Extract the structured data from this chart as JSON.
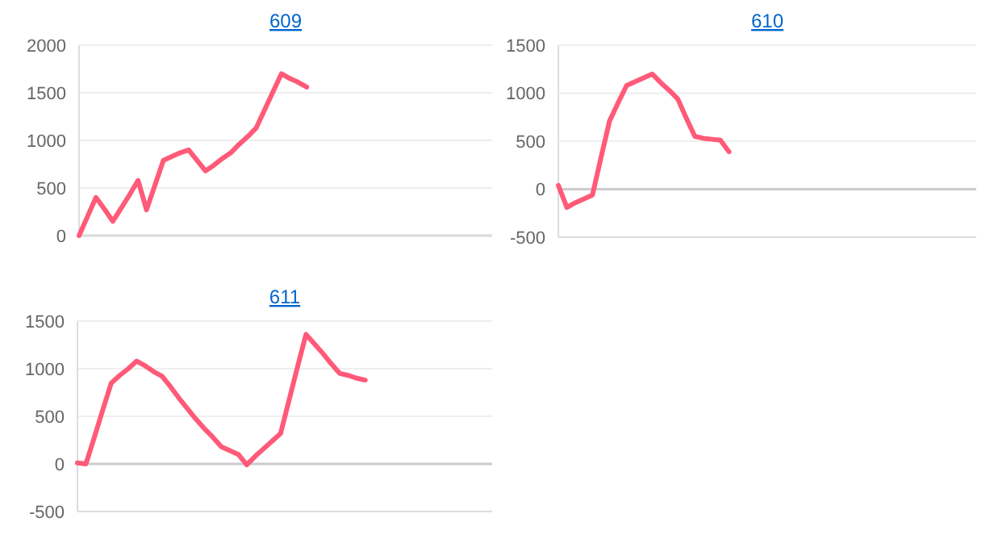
{
  "chart_data": [
    {
      "type": "line",
      "title": "609",
      "categories": [
        null,
        null,
        null,
        null,
        null,
        null,
        null,
        null,
        null,
        null,
        null,
        null,
        null,
        null,
        null,
        null,
        null,
        null,
        null,
        null,
        null,
        null,
        null,
        null,
        null,
        null,
        null,
        null,
        null,
        null,
        null,
        null,
        null,
        null,
        null,
        null,
        null,
        null,
        null,
        null,
        null,
        null,
        null,
        null,
        null,
        null,
        null,
        null,
        null,
        null
      ],
      "series": [
        {
          "color": "#ff5a78",
          "values": [
            0,
            200,
            400,
            280,
            150,
            290,
            430,
            580,
            270,
            530,
            790,
            830,
            870,
            900,
            790,
            680,
            740,
            810,
            870,
            960,
            1040,
            1130,
            1320,
            1510,
            1700,
            1650,
            1610,
            1560,
            null,
            null,
            null,
            null,
            null,
            null,
            null,
            null,
            null,
            null,
            null,
            null,
            null,
            null,
            null,
            null,
            null,
            null,
            null,
            null,
            null,
            null
          ]
        }
      ],
      "ylim": [
        0,
        2000
      ],
      "yticks": [
        0,
        500,
        1000,
        1500,
        2000
      ],
      "grid": "y",
      "marker": "none",
      "line_style": "solid"
    },
    {
      "type": "line",
      "title": "610",
      "categories": [
        null,
        null,
        null,
        null,
        null,
        null,
        null,
        null,
        null,
        null,
        null,
        null,
        null,
        null,
        null,
        null,
        null,
        null,
        null,
        null,
        null,
        null,
        null,
        null,
        null,
        null,
        null,
        null,
        null,
        null,
        null,
        null,
        null,
        null,
        null,
        null,
        null,
        null,
        null,
        null,
        null,
        null,
        null,
        null,
        null,
        null,
        null,
        null,
        null,
        null
      ],
      "series": [
        {
          "color": "#ff5a78",
          "values": [
            40,
            -190,
            -140,
            -100,
            -60,
            330,
            710,
            900,
            1080,
            1120,
            1160,
            1200,
            1110,
            1030,
            940,
            740,
            550,
            530,
            520,
            510,
            390,
            null,
            null,
            null,
            null,
            null,
            null,
            null,
            null,
            null,
            null,
            null,
            null,
            null,
            null,
            null,
            null,
            null,
            null,
            null,
            null,
            null,
            null,
            null,
            null,
            null,
            null,
            null,
            null,
            null
          ]
        }
      ],
      "ylim": [
        -500,
        1500
      ],
      "yticks": [
        -500,
        0,
        500,
        1000,
        1500
      ],
      "grid": "y",
      "marker": "none",
      "line_style": "solid"
    },
    {
      "type": "line",
      "title": "611",
      "categories": [
        null,
        null,
        null,
        null,
        null,
        null,
        null,
        null,
        null,
        null,
        null,
        null,
        null,
        null,
        null,
        null,
        null,
        null,
        null,
        null,
        null,
        null,
        null,
        null,
        null,
        null,
        null,
        null,
        null,
        null,
        null,
        null,
        null,
        null,
        null,
        null,
        null,
        null,
        null,
        null,
        null,
        null,
        null,
        null,
        null,
        null,
        null,
        null,
        null,
        null
      ],
      "series": [
        {
          "color": "#ff5a78",
          "values": [
            10,
            0,
            280,
            570,
            850,
            930,
            1000,
            1080,
            1030,
            970,
            920,
            810,
            690,
            580,
            470,
            370,
            280,
            180,
            140,
            100,
            -10,
            80,
            160,
            240,
            320,
            670,
            1020,
            1360,
            1260,
            1160,
            1050,
            950,
            930,
            900,
            880,
            null,
            null,
            null,
            null,
            null,
            null,
            null,
            null,
            null,
            null,
            null,
            null,
            null,
            null,
            null
          ]
        }
      ],
      "ylim": [
        -500,
        1500
      ],
      "yticks": [
        -500,
        0,
        500,
        1000,
        1500
      ],
      "grid": "y",
      "marker": "none",
      "line_style": "solid"
    }
  ]
}
